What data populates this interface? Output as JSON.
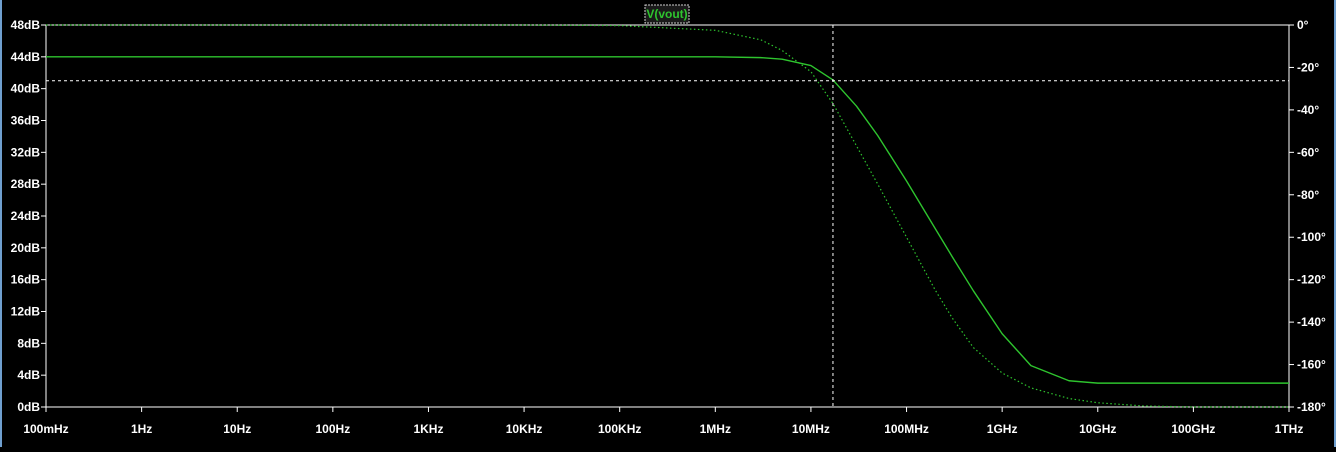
{
  "trace_label": "V(vout)",
  "colors": {
    "background": "#000000",
    "axis": "#ffffff",
    "grid": "#4a4a4a",
    "trace": "#2ec42e",
    "trace_label_bg": "#1a1a1a",
    "cursor": "#ffffff"
  },
  "cursor": {
    "frequency_hz": 17000000,
    "magnitude_db": 41
  },
  "chart_data": {
    "type": "line",
    "title": "V(vout)",
    "x_scale": "log",
    "x_unit": "Hz",
    "xlim": [
      0.1,
      1000000000000
    ],
    "y_left": {
      "label": "",
      "unit": "dB",
      "lim": [
        0,
        48
      ]
    },
    "y_right": {
      "label": "",
      "unit": "°",
      "lim": [
        -180,
        0
      ]
    },
    "x_ticks": [
      {
        "value": 0.1,
        "label": "100mHz"
      },
      {
        "value": 1,
        "label": "1Hz"
      },
      {
        "value": 10,
        "label": "10Hz"
      },
      {
        "value": 100,
        "label": "100Hz"
      },
      {
        "value": 1000,
        "label": "1KHz"
      },
      {
        "value": 10000,
        "label": "10KHz"
      },
      {
        "value": 100000,
        "label": "100KHz"
      },
      {
        "value": 1000000,
        "label": "1MHz"
      },
      {
        "value": 10000000,
        "label": "10MHz"
      },
      {
        "value": 100000000,
        "label": "100MHz"
      },
      {
        "value": 1000000000,
        "label": "1GHz"
      },
      {
        "value": 10000000000,
        "label": "10GHz"
      },
      {
        "value": 100000000000,
        "label": "100GHz"
      },
      {
        "value": 1000000000000,
        "label": "1THz"
      }
    ],
    "y_left_ticks": [
      {
        "value": 48,
        "label": "48dB"
      },
      {
        "value": 44,
        "label": "44dB"
      },
      {
        "value": 40,
        "label": "40dB"
      },
      {
        "value": 36,
        "label": "36dB"
      },
      {
        "value": 32,
        "label": "32dB"
      },
      {
        "value": 28,
        "label": "28dB"
      },
      {
        "value": 24,
        "label": "24dB"
      },
      {
        "value": 20,
        "label": "20dB"
      },
      {
        "value": 16,
        "label": "16dB"
      },
      {
        "value": 12,
        "label": "12dB"
      },
      {
        "value": 8,
        "label": "8dB"
      },
      {
        "value": 4,
        "label": "4dB"
      },
      {
        "value": 0,
        "label": "0dB"
      }
    ],
    "y_right_ticks": [
      {
        "value": 0,
        "label": "0°"
      },
      {
        "value": -20,
        "label": "-20°"
      },
      {
        "value": -40,
        "label": "-40°"
      },
      {
        "value": -60,
        "label": "-60°"
      },
      {
        "value": -80,
        "label": "-80°"
      },
      {
        "value": -100,
        "label": "-100°"
      },
      {
        "value": -120,
        "label": "-120°"
      },
      {
        "value": -140,
        "label": "-140°"
      },
      {
        "value": -160,
        "label": "-160°"
      },
      {
        "value": -180,
        "label": "-180°"
      }
    ],
    "series": [
      {
        "name": "V(vout)",
        "axis": "left",
        "style": "solid",
        "x": [
          0.1,
          1,
          10,
          100,
          1000,
          10000,
          100000,
          1000000,
          3000000,
          5000000,
          10000000,
          17000000,
          30000000,
          50000000,
          100000000,
          200000000,
          300000000,
          500000000,
          1000000000,
          2000000000,
          5000000000,
          10000000000,
          100000000000,
          1000000000000
        ],
        "y": [
          44,
          44,
          44,
          44,
          44,
          44,
          44,
          44,
          43.9,
          43.7,
          42.9,
          41.1,
          37.8,
          34.1,
          28.4,
          22.4,
          18.9,
          14.6,
          9.2,
          5.2,
          3.3,
          3.0,
          3.0,
          3.0
        ]
      },
      {
        "name": "V(vout) phase",
        "axis": "right",
        "style": "dotted",
        "x": [
          0.1,
          1,
          10,
          100,
          1000,
          10000,
          100000,
          1000000,
          3000000,
          5000000,
          10000000,
          17000000,
          30000000,
          50000000,
          100000000,
          200000000,
          300000000,
          500000000,
          1000000000,
          2000000000,
          5000000000,
          10000000000,
          30000000000,
          100000000000,
          1000000000000
        ],
        "y": [
          0,
          0,
          0,
          0,
          0,
          0,
          -0.3,
          -2.5,
          -7,
          -12,
          -22,
          -37,
          -57,
          -75,
          -100,
          -125,
          -138,
          -152,
          -164,
          -171,
          -176,
          -178,
          -179.5,
          -180,
          -180
        ]
      }
    ]
  }
}
